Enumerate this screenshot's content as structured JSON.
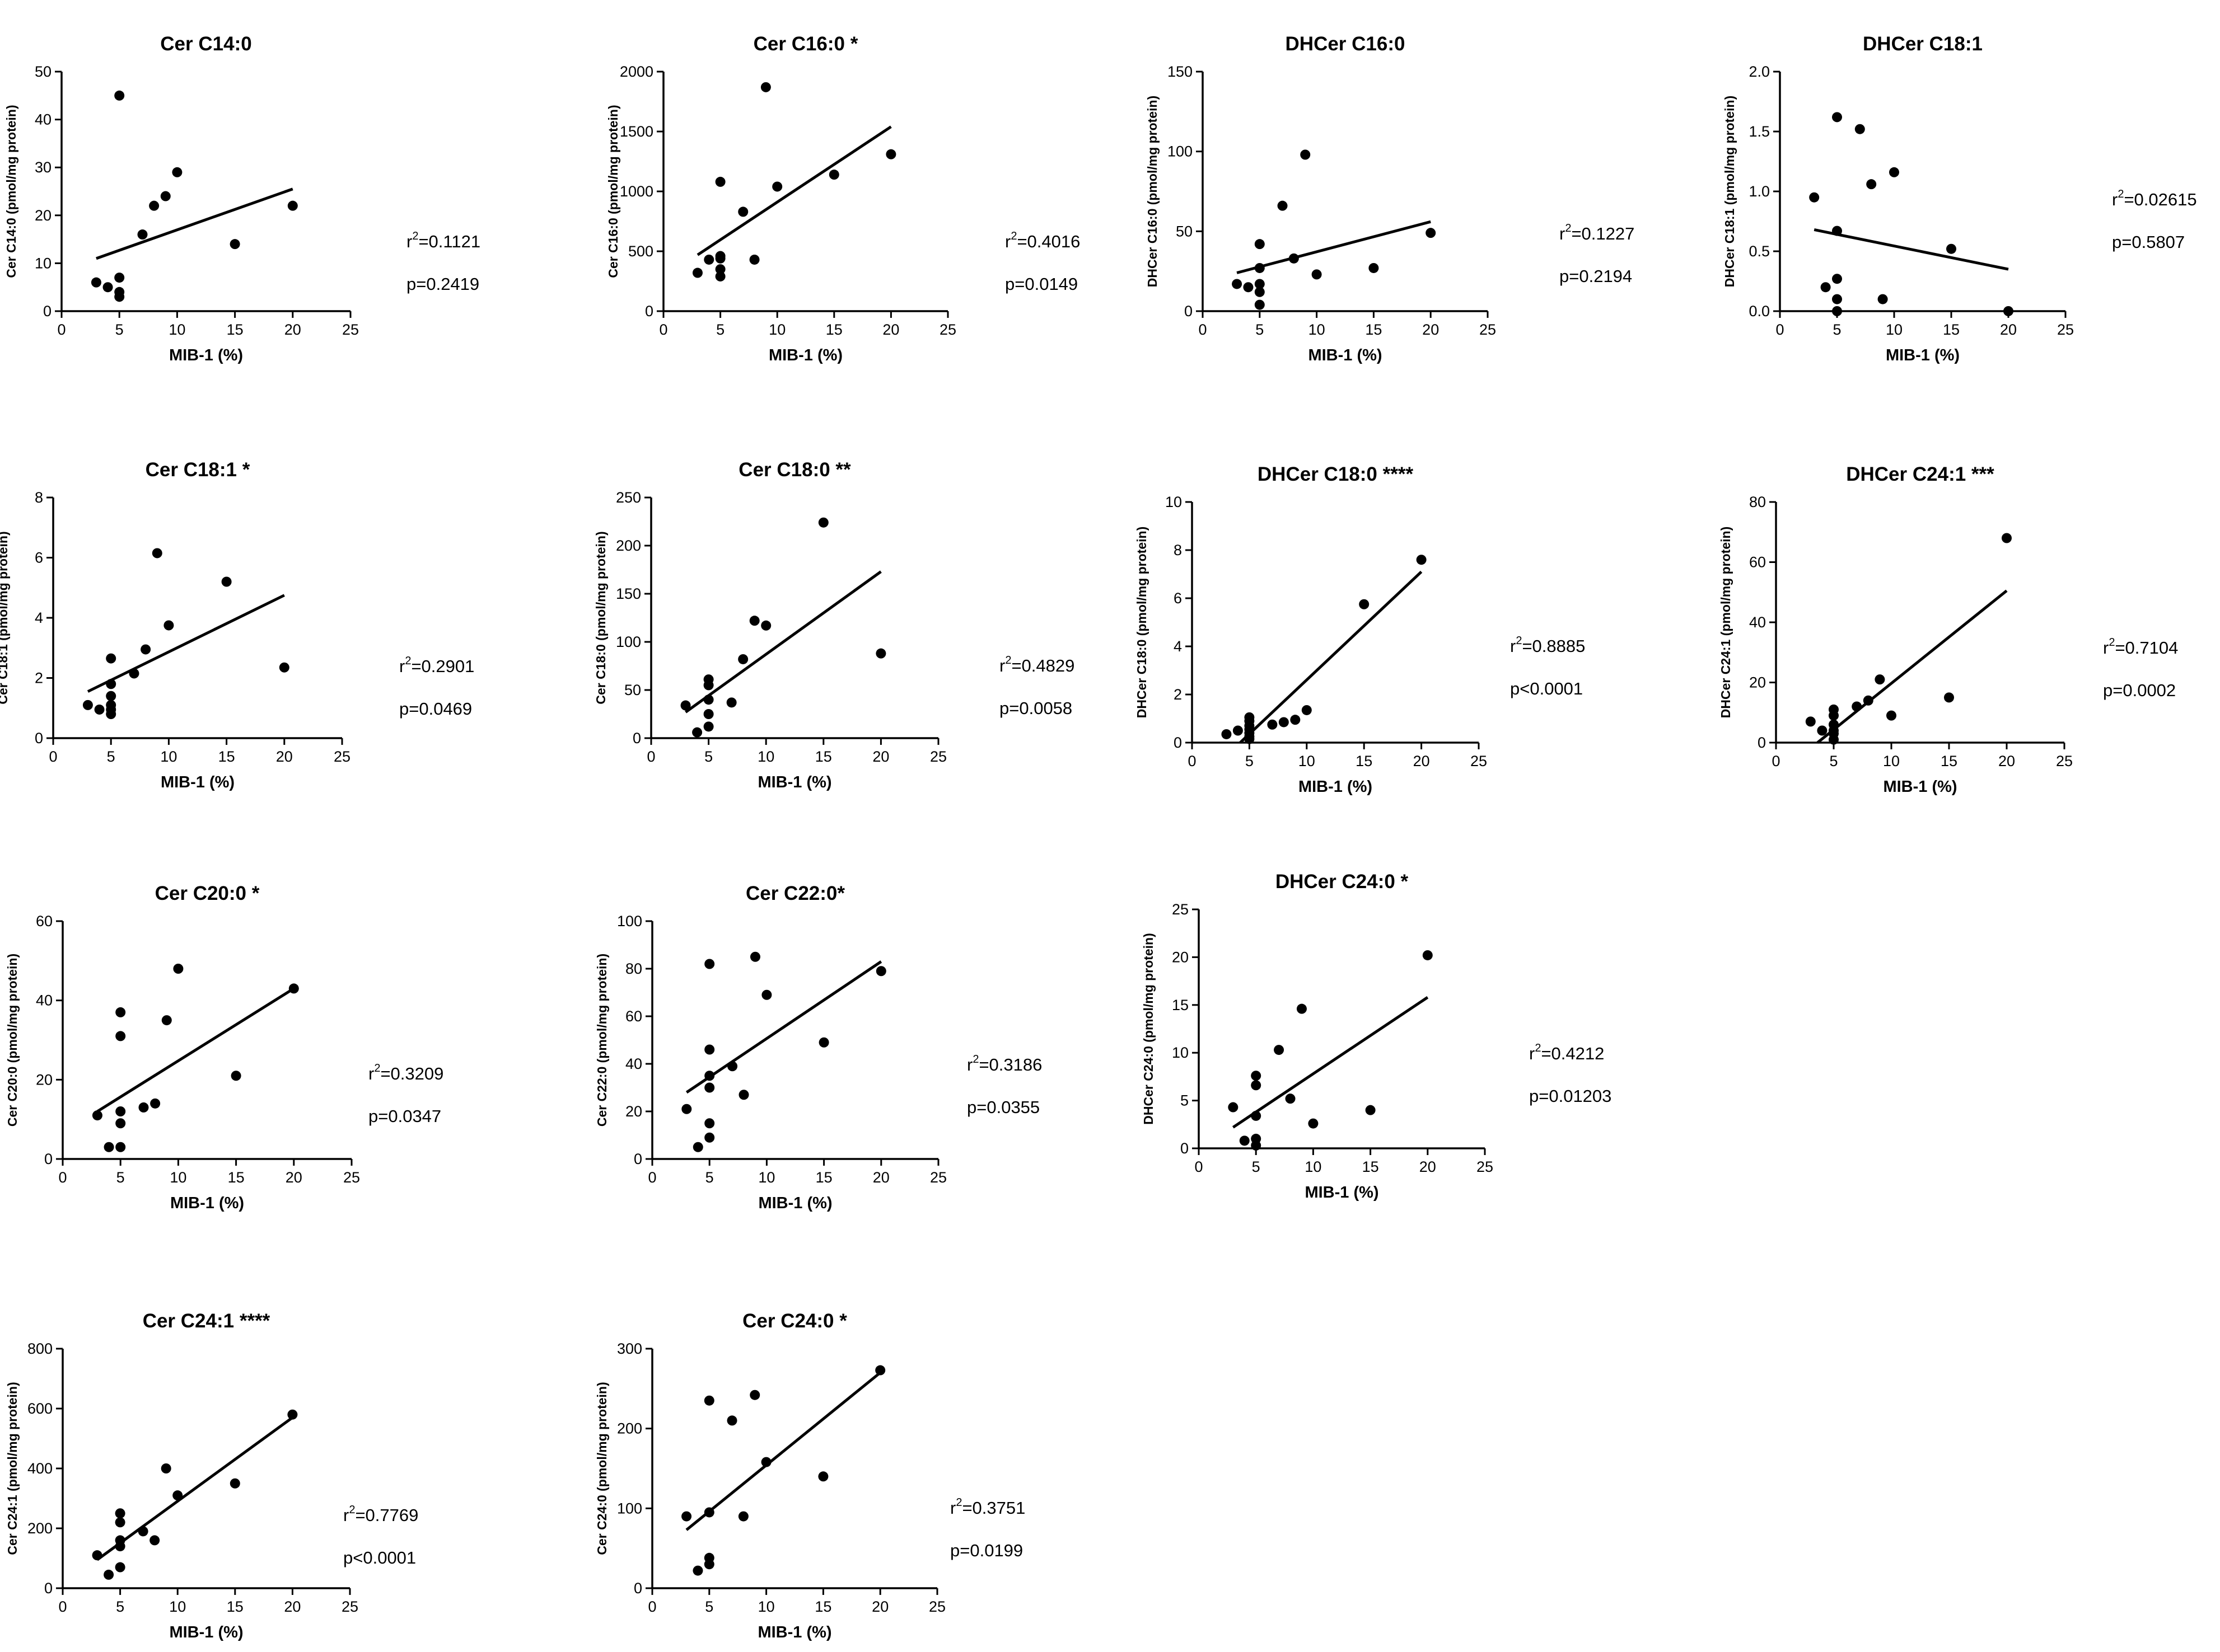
{
  "chart_data": [
    {
      "type": "scatter",
      "title": "Cer C14:0",
      "xlabel": "MIB-1 (%)",
      "ylabel": "Cer C14:0 (pmol/mg protein)",
      "xlim": [
        0,
        25
      ],
      "ylim": [
        0,
        50
      ],
      "xticks": [
        0,
        5,
        10,
        15,
        20,
        25
      ],
      "yticks": [
        0,
        10,
        20,
        30,
        40,
        50
      ],
      "x": [
        3,
        4,
        5,
        5,
        5,
        5,
        7,
        8,
        9,
        10,
        15,
        20
      ],
      "y": [
        6,
        5,
        45,
        7,
        4,
        3,
        16,
        22,
        24,
        29,
        14,
        22
      ],
      "regression": {
        "x": [
          3,
          20
        ],
        "y": [
          11,
          25.5
        ]
      },
      "stat_lines": [
        {
          "label": "r",
          "sup": "2",
          "value": "=0.1121"
        },
        {
          "label": "p=0.2419",
          "sup": "",
          "value": ""
        }
      ]
    },
    {
      "type": "scatter",
      "title": "Cer C16:0 *",
      "xlabel": "MIB-1 (%)",
      "ylabel": "Cer C16:0 (pmol/mg protein)",
      "xlim": [
        0,
        25
      ],
      "ylim": [
        0,
        2000
      ],
      "xticks": [
        0,
        5,
        10,
        15,
        20,
        25
      ],
      "yticks": [
        0,
        500,
        1000,
        1500,
        2000
      ],
      "x": [
        3,
        4,
        5,
        5,
        5,
        5,
        5,
        7,
        8,
        9,
        10,
        15,
        20
      ],
      "y": [
        320,
        430,
        1080,
        460,
        350,
        290,
        440,
        830,
        430,
        1870,
        1040,
        1140,
        1310
      ],
      "regression": {
        "x": [
          3,
          20
        ],
        "y": [
          470,
          1540
        ]
      },
      "stat_lines": [
        {
          "label": "r",
          "sup": "2",
          "value": "=0.4016"
        },
        {
          "label": "p=0.0149",
          "sup": "",
          "value": ""
        }
      ]
    },
    {
      "type": "scatter",
      "title": "DHCer C16:0",
      "xlabel": "MIB-1 (%)",
      "ylabel": "DHCer C16:0 (pmol/mg protein)",
      "xlim": [
        0,
        25
      ],
      "ylim": [
        0,
        150
      ],
      "xticks": [
        0,
        5,
        10,
        15,
        20,
        25
      ],
      "yticks": [
        0,
        50,
        100,
        150
      ],
      "x": [
        3,
        4,
        5,
        5,
        5,
        5,
        5,
        7,
        8,
        9,
        10,
        15,
        20
      ],
      "y": [
        17,
        15,
        42,
        27,
        17,
        12,
        4,
        66,
        33,
        98,
        23,
        27,
        49
      ],
      "regression": {
        "x": [
          3,
          20
        ],
        "y": [
          24,
          56
        ]
      },
      "stat_lines": [
        {
          "label": "r",
          "sup": "2",
          "value": "=0.1227"
        },
        {
          "label": "p=0.2194",
          "sup": "",
          "value": ""
        }
      ]
    },
    {
      "type": "scatter",
      "title": "DHCer C18:1",
      "xlabel": "MIB-1 (%)",
      "ylabel": "DHCer C18:1 (pmol/mg protein)",
      "xlim": [
        0,
        25
      ],
      "ylim": [
        0,
        2.0
      ],
      "xticks": [
        0,
        5,
        10,
        15,
        20,
        25
      ],
      "yticks": [
        "0.0",
        "0.5",
        "1.0",
        "1.5",
        "2.0"
      ],
      "x": [
        3,
        4,
        5,
        5,
        5,
        5,
        5,
        7,
        8,
        9,
        10,
        15,
        20
      ],
      "y": [
        0.95,
        0.2,
        1.62,
        0.67,
        0.27,
        0.1,
        0.0,
        1.52,
        1.06,
        0.1,
        1.16,
        0.52,
        0.0
      ],
      "regression": {
        "x": [
          3,
          20
        ],
        "y": [
          0.68,
          0.35
        ]
      },
      "stat_lines": [
        {
          "label": "r",
          "sup": "2",
          "value": "=0.02615"
        },
        {
          "label": "p=0.5807",
          "sup": "",
          "value": ""
        }
      ]
    },
    {
      "type": "scatter",
      "title": "Cer C18:1 *",
      "xlabel": "MIB-1 (%)",
      "ylabel": "Cer C18:1 (pmol/mg protein)",
      "xlim": [
        0,
        25
      ],
      "ylim": [
        0,
        8
      ],
      "xticks": [
        0,
        5,
        10,
        15,
        20,
        25
      ],
      "yticks": [
        0,
        2,
        4,
        6,
        8
      ],
      "x": [
        3,
        4,
        5,
        5,
        5,
        5,
        5,
        5,
        7,
        8,
        9,
        10,
        15,
        20
      ],
      "y": [
        1.1,
        0.95,
        2.65,
        1.8,
        1.4,
        1.1,
        0.95,
        0.8,
        2.15,
        2.95,
        6.15,
        3.75,
        5.2,
        2.35
      ],
      "regression": {
        "x": [
          3,
          20
        ],
        "y": [
          1.55,
          4.75
        ]
      },
      "stat_lines": [
        {
          "label": "r",
          "sup": "2",
          "value": "=0.2901"
        },
        {
          "label": "p=0.0469",
          "sup": "",
          "value": ""
        }
      ]
    },
    {
      "type": "scatter",
      "title": "Cer C18:0 **",
      "xlabel": "MIB-1 (%)",
      "ylabel": "Cer C18:0 (pmol/mg protein)",
      "xlim": [
        0,
        25
      ],
      "ylim": [
        0,
        250
      ],
      "xticks": [
        0,
        5,
        10,
        15,
        20,
        25
      ],
      "yticks": [
        0,
        50,
        100,
        150,
        200,
        250
      ],
      "x": [
        3,
        4,
        5,
        5,
        5,
        5,
        5,
        7,
        8,
        9,
        10,
        15,
        20
      ],
      "y": [
        34,
        6,
        61,
        55,
        40,
        25,
        12,
        37,
        82,
        122,
        117,
        224,
        88
      ],
      "regression": {
        "x": [
          3,
          20
        ],
        "y": [
          27,
          173
        ]
      },
      "stat_lines": [
        {
          "label": "r",
          "sup": "2",
          "value": "=0.4829"
        },
        {
          "label": "p=0.0058",
          "sup": "",
          "value": ""
        }
      ]
    },
    {
      "type": "scatter",
      "title": "DHCer C18:0 ****",
      "xlabel": "MIB-1 (%)",
      "ylabel": "DHCer C18:0 (pmol/mg protein)",
      "xlim": [
        0,
        25
      ],
      "ylim": [
        0,
        10
      ],
      "xticks": [
        0,
        5,
        10,
        15,
        20,
        25
      ],
      "yticks": [
        0,
        2,
        4,
        6,
        8,
        10
      ],
      "x": [
        3,
        4,
        5,
        5,
        5,
        5,
        5,
        5,
        5,
        7,
        8,
        9,
        10,
        15,
        20
      ],
      "y": [
        0.35,
        0.5,
        1.05,
        0.9,
        0.7,
        0.55,
        0.4,
        0.25,
        0.15,
        0.75,
        0.85,
        0.95,
        1.35,
        5.75,
        7.6
      ],
      "regression": {
        "x": [
          4.2,
          20
        ],
        "y": [
          0,
          7.1
        ]
      },
      "stat_lines": [
        {
          "label": "r",
          "sup": "2",
          "value": "=0.8885"
        },
        {
          "label": "p<0.0001",
          "sup": "",
          "value": ""
        }
      ]
    },
    {
      "type": "scatter",
      "title": "DHCer C24:1 ***",
      "xlabel": "MIB-1 (%)",
      "ylabel": "DHCer C24:1 (pmol/mg protein)",
      "xlim": [
        0,
        25
      ],
      "ylim": [
        0,
        80
      ],
      "xticks": [
        0,
        5,
        10,
        15,
        20,
        25
      ],
      "yticks": [
        0,
        20,
        40,
        60,
        80
      ],
      "x": [
        3,
        4,
        5,
        5,
        5,
        5,
        5,
        5,
        7,
        8,
        9,
        10,
        15,
        20
      ],
      "y": [
        7,
        4,
        11,
        9,
        6,
        4,
        3,
        1,
        12,
        14,
        21,
        9,
        15,
        68
      ],
      "regression": {
        "x": [
          3.6,
          20
        ],
        "y": [
          0,
          50.5
        ]
      },
      "stat_lines": [
        {
          "label": "r",
          "sup": "2",
          "value": "=0.7104"
        },
        {
          "label": "p=0.0002",
          "sup": "",
          "value": ""
        }
      ]
    },
    {
      "type": "scatter",
      "title": "Cer C20:0 *",
      "xlabel": "MIB-1 (%)",
      "ylabel": "Cer C20:0 (pmol/mg protein)",
      "xlim": [
        0,
        25
      ],
      "ylim": [
        0,
        60
      ],
      "xticks": [
        0,
        5,
        10,
        15,
        20,
        25
      ],
      "yticks": [
        0,
        20,
        40,
        60
      ],
      "x": [
        3,
        4,
        5,
        5,
        5,
        5,
        5,
        7,
        8,
        9,
        10,
        15,
        20
      ],
      "y": [
        11,
        3,
        37,
        31,
        12,
        9,
        3,
        13,
        14,
        35,
        48,
        21,
        43
      ],
      "regression": {
        "x": [
          3,
          20
        ],
        "y": [
          12,
          43
        ]
      },
      "stat_lines": [
        {
          "label": "r",
          "sup": "2",
          "value": "=0.3209"
        },
        {
          "label": "p=0.0347",
          "sup": "",
          "value": ""
        }
      ]
    },
    {
      "type": "scatter",
      "title": "Cer C22:0*",
      "xlabel": "MIB-1 (%)",
      "ylabel": "Cer C22:0 (pmol/mg protein)",
      "xlim": [
        0,
        25
      ],
      "ylim": [
        0,
        100
      ],
      "xticks": [
        0,
        5,
        10,
        15,
        20,
        25
      ],
      "yticks": [
        0,
        20,
        40,
        60,
        80,
        100
      ],
      "x": [
        3,
        4,
        5,
        5,
        5,
        5,
        5,
        5,
        7,
        8,
        9,
        10,
        15,
        20
      ],
      "y": [
        21,
        5,
        82,
        46,
        35,
        30,
        15,
        9,
        39,
        27,
        85,
        69,
        49,
        79
      ],
      "regression": {
        "x": [
          3,
          20
        ],
        "y": [
          28,
          83
        ]
      },
      "stat_lines": [
        {
          "label": "r",
          "sup": "2",
          "value": "=0.3186"
        },
        {
          "label": "p=0.0355",
          "sup": "",
          "value": ""
        }
      ]
    },
    {
      "type": "scatter",
      "title": "DHCer C24:0 *",
      "xlabel": "MIB-1 (%)",
      "ylabel": "DHCer C24:0 (pmol/mg protein)",
      "xlim": [
        0,
        25
      ],
      "ylim": [
        0,
        25
      ],
      "xticks": [
        0,
        5,
        10,
        15,
        20,
        25
      ],
      "yticks": [
        0,
        5,
        10,
        15,
        20,
        25
      ],
      "x": [
        3,
        4,
        5,
        5,
        5,
        5,
        5,
        7,
        8,
        9,
        10,
        15,
        20
      ],
      "y": [
        4.3,
        0.8,
        7.6,
        6.6,
        3.4,
        1.0,
        0.3,
        10.3,
        5.2,
        14.6,
        2.6,
        4.0,
        20.2
      ],
      "regression": {
        "x": [
          3,
          20
        ],
        "y": [
          2.2,
          15.8
        ]
      },
      "stat_lines": [
        {
          "label": "r",
          "sup": "2",
          "value": "=0.4212"
        },
        {
          "label": "p=0.01203",
          "sup": "",
          "value": ""
        }
      ]
    },
    {
      "type": "scatter",
      "title": "Cer C24:1 ****",
      "xlabel": "MIB-1 (%)",
      "ylabel": "Cer C24:1 (pmol/mg protein)",
      "xlim": [
        0,
        25
      ],
      "ylim": [
        0,
        800
      ],
      "xticks": [
        0,
        5,
        10,
        15,
        20,
        25
      ],
      "yticks": [
        0,
        200,
        400,
        600,
        800
      ],
      "x": [
        3,
        4,
        5,
        5,
        5,
        5,
        5,
        7,
        8,
        9,
        10,
        15,
        20
      ],
      "y": [
        110,
        45,
        250,
        220,
        160,
        140,
        70,
        190,
        160,
        400,
        310,
        350,
        580
      ],
      "regression": {
        "x": [
          3,
          20
        ],
        "y": [
          95,
          570
        ]
      },
      "stat_lines": [
        {
          "label": "r",
          "sup": "2",
          "value": "=0.7769"
        },
        {
          "label": "p<0.0001",
          "sup": "",
          "value": ""
        }
      ]
    },
    {
      "type": "scatter",
      "title": "Cer C24:0 *",
      "xlabel": "MIB-1 (%)",
      "ylabel": "Cer C24:0 (pmol/mg protein)",
      "xlim": [
        0,
        25
      ],
      "ylim": [
        0,
        300
      ],
      "xticks": [
        0,
        5,
        10,
        15,
        20,
        25
      ],
      "yticks": [
        0,
        100,
        200,
        300
      ],
      "x": [
        3,
        4,
        5,
        5,
        5,
        5,
        7,
        8,
        9,
        10,
        15,
        20
      ],
      "y": [
        90,
        22,
        235,
        95,
        38,
        30,
        210,
        90,
        242,
        158,
        140,
        273
      ],
      "regression": {
        "x": [
          3,
          20
        ],
        "y": [
          73,
          270
        ]
      },
      "stat_lines": [
        {
          "label": "r",
          "sup": "2",
          "value": "=0.3751"
        },
        {
          "label": "p=0.0199",
          "sup": "",
          "value": ""
        }
      ]
    }
  ]
}
